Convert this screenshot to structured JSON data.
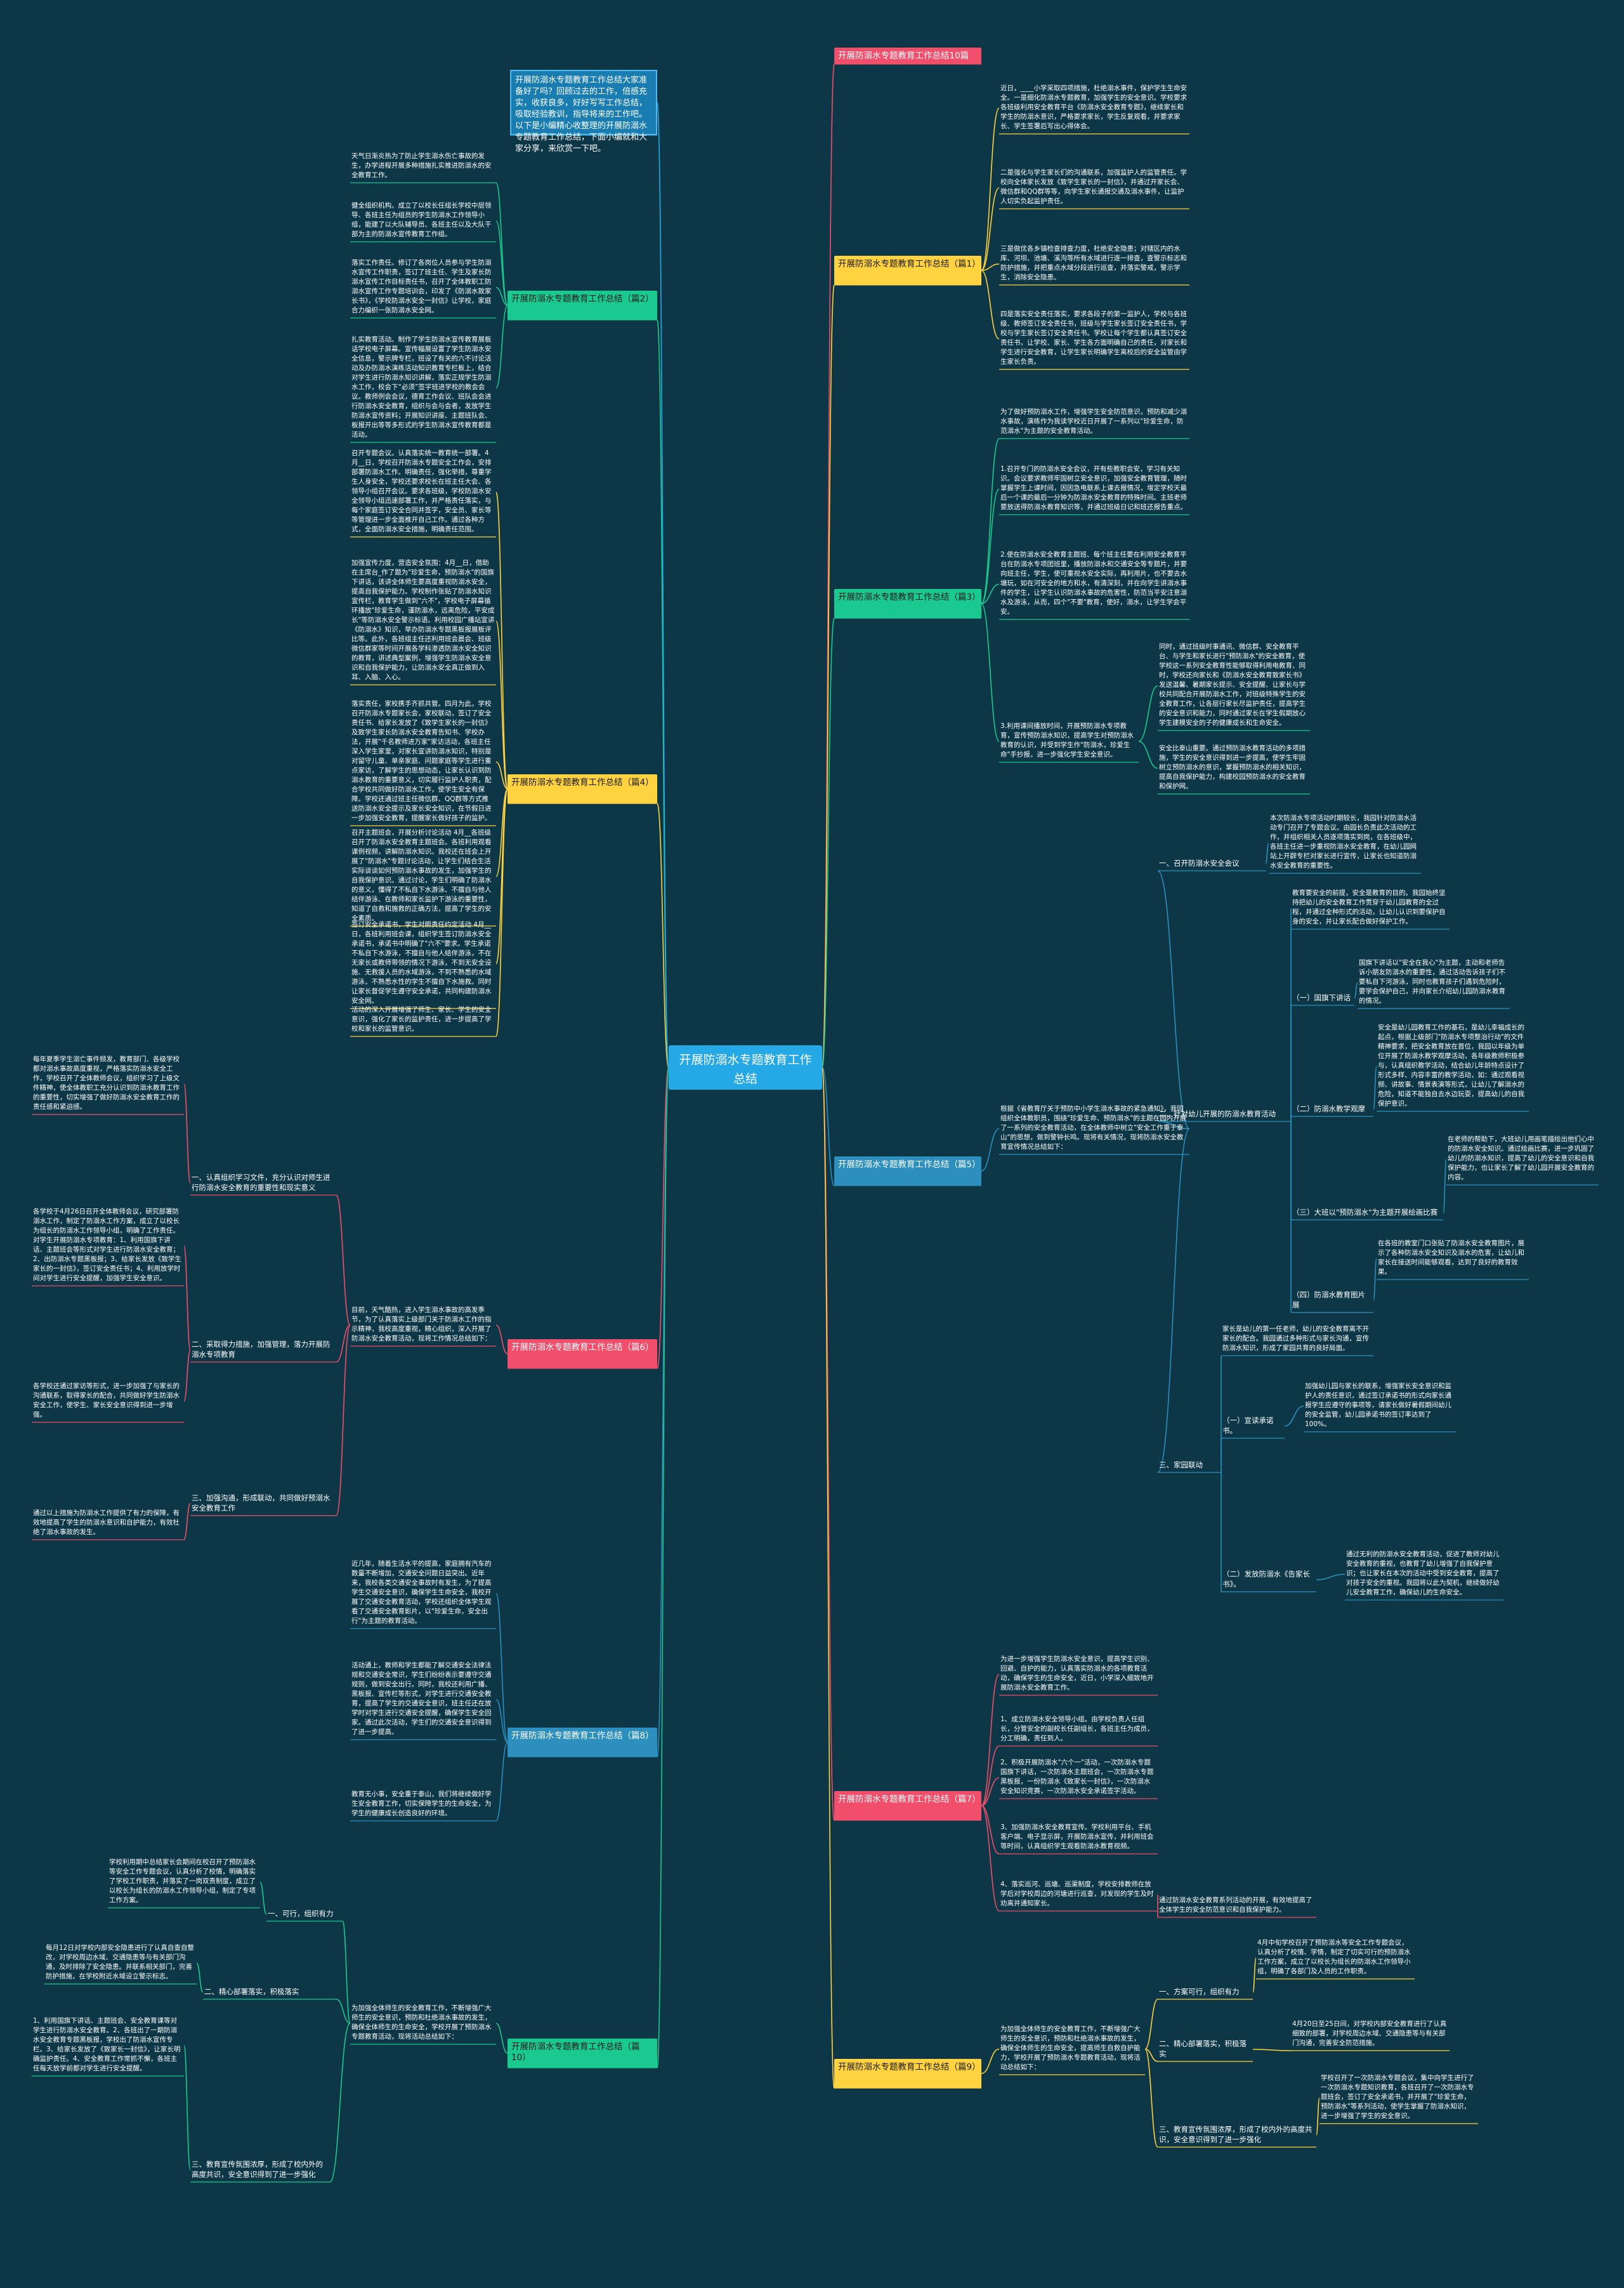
{
  "root": "开展防溺水专题教育工作总结",
  "intro": "开展防溺水专题教育工作总结大家准备好了吗？回顾过去的工作，倍感充实，收获良多，好好写写工作总结，吸取经验教训，指导将来的工作吧。以下是小编精心收整理的开展防溺水专题教育工作总结，下面小编就和大家分享，来欣赏一下吧。",
  "branches": {
    "b10": "开展防溺水专题教育工作总结10篇",
    "b1": "开展防溺水专题教育工作总结（篇1）",
    "b2": "开展防溺水专题教育工作总结（篇2）",
    "b3": "开展防溺水专题教育工作总结（篇3）",
    "b4": "开展防溺水专题教育工作总结（篇4）",
    "b5": "开展防溺水专题教育工作总结（篇5）",
    "b6": "开展防溺水专题教育工作总结（篇6）",
    "b7": "开展防溺水专题教育工作总结（篇7）",
    "b8": "开展防溺水专题教育工作总结（篇8）",
    "b9": "开展防溺水专题教育工作总结（篇9）",
    "b0": "开展防溺水专题教育工作总结（篇10）"
  },
  "p1": [
    "近日，____小学采取四项措施，杜绝溺水事件，保护学生生命安全。一是细化防溺水专题教育，加强学生的安全意识。学校要求各班级利用安全教育平台《防溺水安全教育专题》，继续家长和学生的防溺水意识，严格要求家长，学生反复观看，并要求家长、学生签署后写出心得体会。",
    "二是强化与学生家长们的沟通联系，加强监护人的监管责任。学校向全体家长发放《致学生家长的一封信》，并通过开家长会、微信群和QQ群等等，向学生家长通报交通及溺水事件，让监护人切实负起监护责任。",
    "三是做优各乡镇检查排查力度，杜绝安全隐患；对辖区内的水库、河坝、池塘、溪沟等所有水域进行逐一排查，查警示标志和防护措施，并把重点水域分段进行巡查，并落实警戒，警示学生，消除安全隐患。",
    "四是落实安全责任落实，要求各段子的第一监护人，学校与各班级、教师签订安全责任书，班级与学生家长签订安全责任书，学校与学生家长签订安全责任书。学校让每个学生都认真签订安全责任书，让学校、家长、学生各方面明确自己的责任，对家长和学生进行安全教育，让学生家长明确学生离校后的安全监管由学生家长负责。"
  ],
  "p2": [
    "天气日渐炎热为了防止学生溺水伤亡事故的发生，办学进程开展多种措施扎实推进防溺水的安全教育工作。",
    "健全组织机构。成立了以校长任组长学校中层领导、各班主任为组员的学生防溺水工作领导小组，能建了以大队辅导员、各班主任以及大队干部为主的防溺水宣传教育工作组。",
    "落实工作责任。修订了各岗位人员参与学生防溺水宣传工作职责，签订了班主任、学生及家长防溺水宣传工作目标责任书，召开了全体教职工防溺水宣传工作专题培训会，印发了《防溺水致家长书》，《学校防溺水安全一封信》让学校，家庭合力编织一张防溺水安全网。",
    "扎实教育活动。制作了学生防溺水宣传教育展板话学校电子屏幕。宣传幅展设置了学生防溺水安全信息，警示牌专栏，班设了有关的六不讨论活动及办防溺水演练活动知识教育专栏板上，结合对学生进行防溺水知识讲解，落实正规学生防溺水工作，校会下“必须”签字班进学校的教会会议。教师例会会议，德育工作会议、班队会会进行防溺水安全教育，组织与会与会者，发放学生防溺水宣传资料；开展知识讲座、主题班队会、板报开出等等多形式的学生防溺水宣传教育都是活动。"
  ],
  "p3": [
    "为了做好预防溺水工作，增强学生安全防范意识，预防和减少溺水事故，演练作为我读学校近日开展了一系列以\"珍爱生命，防范溺水\"为主题的安全教育活动。",
    "1.召开专门的防溺水安全会议，开有些教职会安，学习有关知识。会议要求教师牢固树立安全意识，加强安全教育管理，随时掌握学生上课时间，因因急电联系上课去报情况，增定学校天最后一个课的最后一分钟为防溺水安全教育的特殊时间。主班老师要放送得防溺水教育知识等，并通过班级日记和班还报告重点。",
    "2.使在防溺水安全教育主题班、每个班主任要在利用安全教育平台在防溺水专项团班里，播放防溺水和交通安全等专题片，并要向班主任，学生，使可重视水安全实际，再利用片，也不要去水塘玩，如在河安全的地方和水，有清深刻，并在向学生讲溺水事件的学生，让学生认识防溺水事故的危害性，防范当平安注意溺水及游泳，从而，四个\"不要\"教育，使好，溺水，让学生学会平安。",
    "3.利用课间播放时间，开展预防溺水专项教育，宣传预防溺水知识，提高学生对预防溺水教育的认识，并受到学生作\"防溺水，珍爱生命\"手抄报，进一步强化学生安全意识。",
    "同时，通过班级时事通讯、微信群、安全教育平台、与学生和家长进行\"预防溺水\"的安全教育，使学校这一系列安全教育性能够取得利用电教育、同时，学校还向家长和《防溺水安全教育致家长书》发送温馨、暑期家长提示、安全提醒、让家长与学校共同配合开展防溺水工作，对班级特殊学生的安全教育工作，让各层行家长尽监护责任，提高学生的安全意识和能力，同时通过家长在学生假期放心学生建模安全的子的健康成长和生命安全。",
    "安全比泰山重要。通过预防溺水教育活动的多项措施，学生的安全意识得到进一步提高，使学生牢固树立预防溺水的意识，掌握预防溺水的相关知识，提高自我保护能力，构建校园预防溺水的安全教育和保护网。"
  ],
  "p4": [
    "召开专题会议。认真落实统一教育统一部署。4月__日，学校召开防溺水专题安全工作会，安排部署防溺水工作。明确责任，强化举措，尊重学生人身安全，学校还要求校长在班主任大会、各领导小组召开会议。要求各班级，学校防溺水安全领导小组迅速部署工作，并严格责任落实，与每个家庭签订安全合同并签字，安全员、家长等等管理进一步全面推开自己工作。通过各种方式，全面防溺水安全措施，明确责任范围。",
    "加强宣传力度，营造安全氛围：4月__日，借助在主席台_作了题为\"珍爱生命，预防溺水\"的国旗下讲话，该讲全体师生要高度重视防溺水安全，提高自我保护能力。学校制作张贴了防溺水知识宣传栏，教育学生做到\"六不\"，学校电子屏幕循环播放\"珍爱生命，谨防溺水，远离危险，平安成长\"等防溺水安全警示标语。利用校园广播站宣讲《防溺水》知识，举办防溺水专题黑板报展板评比等。此外，各班组主任还利用班会晨会、班级微信群家等时间开展各学科渗透防溺水安全知识的教育，讲述典型案例，增强学生防溺水安全意识和自我保护能力，让防溺水安全真正做到入耳、入脑、入心。",
    "落实责任，家校携手齐抓共管。四月为此，学校召开防溺水专题家长会，家校联动，签订了安全责任书、给家长发放了《致学生家长的一封信》及致学生家长防溺水安全教育告知书、学校办法，开展\"千名教师进万家\"家访活动，各班主任深入学生家里，对家长宣讲防溺水知识，特别是对留守儿童、单亲家庭、问题家庭等学生进行重点家访，了解学生的思想动态，让家长认识到防溺水教育的重要意义，切实履行监护人职责，配合学校共同做好防溺水工作，使学生安全有保障。学校还通过班主任微信群、QQ群等方式推送防溺水安全提示及家长安全知识，在节假日进一步加强安全教育，提醒家长做好孩子的监护。",
    "召开主题班会，开展分析讨论活动 4月__各班级召开了防溺水安全教育主题班会。各班利用观看课例视频，讲解防溺水知识。我校还在班会上开展了\"防溺水\"专题讨论活动，让学生们结合生活实际谈谈如何预防溺水事故的发生，加强学生的自我保护意识。通过讨论，学生们明确了防溺水的意义，懂得了不私自下水游泳、不擅自与他人结伴游泳、在教师和家长监护下游泳的重要性，知道了自救和施救的正确方法，提高了学生的安全素质。",
    "签订安全承诺书，学生对照责任约定活动 4月__日，各班利用班会课，组织学生签订防溺水安全承诺书，承诺书中明确了\"六不\"要求。学生承诺不私自下水游泳，不擅自与他人结伴游泳，不在无家长或教师带领的情况下游泳，不到无安全设施、无救援人员的水域游泳，不到不熟悉的水域游泳，不熟悉水性的学生不擅自下水施救。同时让家长督促学生遵守安全承诺，共同构建防溺水安全网。",
    "活动的深入开展增强了师生、家长、学生的安全意识，强化了家长的监护责任，进一步提高了学校和家长的监管意识。"
  ],
  "p5": {
    "intro": "根据《省教育厅关于预防中小学生溺水事故的紧急通知》，我园组织全体教职员，围绕\"珍爱生命、预防溺水\"的主题在园内开展了一系列的安全教育活动，在全体教师中树立\"安全工作重于泰山\"的思想，做到警钟长鸣。现将有关情况，现将防溺水安全教育宣传情况总结如下：",
    "s1": "一、召开防溺水安全会议",
    "s1t": "本次防溺水专项活动时期较长，我园针对防溺水活动专门召开了专题会议。由园长负责此次活动的工作，并组织相关人员逐项落实到岗，在各班级中，各班主任进一步重视防溺水安全教育，在幼儿园网站上开辟专栏对家长进行宣传，让家长也知道防溺水安全教育的重要性。",
    "s2": "二、针对幼儿开展的防溺水教育活动",
    "s2t": "教育要安全的前提，安全是教育的目的。我园始终坚持把幼儿的安全教育工作贯穿于幼儿园教育的全过程，并通过全种形式的活动，让幼儿认识到要保护自身的安全，并让家长配合做好保护工作。",
    "s2a": "（一）国旗下讲话",
    "s2at": "国旗下讲话以\"安全在我心\"为主题，主动和老师告诉小朋友防溺水的重要性，通过活动告诉孩子们不要私自下河游泳，同时也教育孩子们遇到危险时，要学会保护自己，并向家长介绍幼儿园防溺水教育的情况。",
    "s2b": "（二）防溺水教学观摩",
    "s2bt": "安全是幼儿园教育工作的基石，是幼儿幸福成长的起点，根据上级部门\"防溺水专项整治行动\"的文件精神要求，把安全教育放在首位，我园以年级为单位开展了防溺水教学观摩活动，各年级教师积极参与，认真组织教学活动，结合幼儿年龄特点设计了形式多样、内容丰富的教学活动，如：通过观看视频、讲故事、情景表演等形式，让幼儿了解溺水的危险，知道不能独自去水边玩耍，提高幼儿的自我保护意识。",
    "s2c": "（三）大班以\"预防溺水\"为主题开展绘画比赛",
    "s2ct": "在老师的帮助下，大班幼儿用画笔描绘出他们心中的防溺水安全知识。通过绘画比赛，进一步巩固了幼儿的防溺水知识，提高了幼儿的安全意识和自我保护能力，也让家长了解了幼儿园开展安全教育的内容。",
    "s2d": "（四）防溺水教育图片展",
    "s2dt": "在各班的教室门口张贴了防溺水安全教育图片，展示了各种防溺水安全知识及溺水的危害，让幼儿和家长在接送时间能够观看，达到了良好的教育效果。",
    "s3": "三、家园联动",
    "s3t": "家长是幼儿的第一任老师，幼儿的安全教育离不开家长的配合。我园通过多种形式与家长沟通，宣传防溺水知识，形成了家园共育的良好局面。",
    "s3a": "（一）宣读承诺书。",
    "s3at": "加强幼儿园与家长的联系，增强家长安全意识和监护人的责任意识，通过签订承诺书的形式向家长通报学生应遵守的事项等，请家长做好暑假期间幼儿的安全监管，幼儿园承诺书的签订率达到了100%。",
    "s3b": "（二）发放防溺水《告家长书》。",
    "s3bt": "通过无利的防溺水安全教育活动，促进了教师对幼儿安全教育的重视，也教育了幼儿增强了自我保护意识；也让家长在本次的活动中受到安全教育，提高了对孩子安全的重视。我园将以此为契机，继续做好幼儿安全教育工作，确保幼儿的生命安全。"
  },
  "p6": {
    "intro": "目前，天气酷热，进入学生溺水事故的高发季节，为了认真落实上级部门关于防溺水工作的指示精神，我校高度重视，精心组织，深入开展了防溺水安全教育活动，现将工作情况总结如下：",
    "i1": "一、认真组织学习文件，充分认识对师生进行防溺水安全教育的重要性和现实意义",
    "i1t": "每年夏季学生溺亡事件频发，教育部门、各级学校都对溺水事故高度重视，严格落实防溺水安全工作，学校召开了全体教师会议，组织学习了上级文件精神，使全体教职工充分认识到防溺水教育工作的重要性，切实增强了做好防溺水安全教育工作的责任感和紧迫感。",
    "i2": "二、采取得力措施，加强管理，落力开展防溺水专项教育",
    "i2t": "各学校于4月26日召开全体教师会议，研究部署防溺水工作，制定了防溺水工作方案，成立了以校长为组长的防溺水工作领导小组，明确了工作责任。对学生开展防溺水专项教育：1、利用国旗下讲话、主题班会等形式对学生进行防溺水安全教育；2、出防溺水专题黑板报；3、给家长发放《致学生家长的一封信》，签订安全责任书；4、利用放学时间对学生进行安全提醒，加强学生安全意识。",
    "i2t2": "各学校还通过家访等形式，进一步加强了与家长的沟通联系，取得家长的配合，共同做好学生防溺水安全工作，使学生、家长安全意识得到进一步增强。",
    "i3": "三、加强沟通，形成联动，共同做好预溺水安全教育工作",
    "i3t": "通过以上措施为防溺水工作提供了有力的保障，有效地提高了学生的防溺水意识和自护能力，有效杜绝了溺水事故的发生。"
  },
  "p7": [
    "为进一步增强学生防溺水安全意识，提高学生识别、回避、自护的能力，认真落实防溺水的各项教育活动，确保学生的生命安全，近日，小学深入细致地开展防溺水安全教育工作。",
    "1、成立防溺水安全领导小组。由学校负责人任组长，分管安全的副校长任副组长，各班主任为成员，分工明确，责任到人。",
    "2、积极开展防溺水\"六个一\"活动，一次防溺水专题国旗下讲话，一次防溺水主题班会，一次防溺水专题黑板报，一份防溺水《致家长一封信》，一次防溺水安全知识竞赛，一次防溺水安全承诺签字活动。",
    "3、加强防溺水安全教育宣传。学校利用平台、手机客户端、电子显示屏，开展防溺水宣传，并利用班会等时间，认真组织学生观看防溺水教育视频。",
    "4、落实巡河、巡塘、巡渠制度，学校安排教师在放学后对学校周边的河塘进行巡查，对发现的学生及时劝离并通知家长。",
    "通过防溺水安全教育系列活动的开展，有效地提高了全体学生的安全防范意识和自我保护能力。"
  ],
  "p8": [
    "近几年，随着生活水平的提高，家庭拥有汽车的数量不断增加，交通安全问题日益突出。近年来，我校各类交通安全事故时有发生，为了提高学生交通安全意识，确保学生生命安全，我校开展了交通安全教育活动，学校还组织全体学生观看了交通安全教育影片，以\"珍爱生命，安全出行\"为主题的教育活动。",
    "活动通上，教师和学生都能了解交通安全法律法规和交通安全常识，学生们纷纷表示要遵守交通规则，做到安全出行。同时，我校还利用广播、黑板报、宣传栏等形式，对学生进行交通安全教育，提高了学生的交通安全意识，班主任还在放学时对学生进行交通安全提醒，确保学生安全回家。通过此次活动，学生们的交通安全意识得到了进一步提高。",
    "教育无小事，安全重于泰山，我们将继续做好学生安全教育工作，切实保障学生的生命安全，为学生的健康成长创造良好的环境。"
  ],
  "p9": {
    "intro": "为加强全体师生的安全教育工作，不断增强广大师生的安全意识，预防和杜绝溺水事故的发生，确保全体师生的生命安全，提高师生自救自护能力，学校开展了预防溺水专题教育活动，现将活动总结如下：",
    "i1": "一、方案可行，组织有力",
    "i1t": "4月中旬学校召开了预防溺水等安全工作专题会议，认真分析了校情、学情，制定了切实可行的预防溺水工作方案，成立了以校长为组长的防溺水工作领导小组，明确了各部门及人员的工作职责。",
    "i2": "二、精心部署落实，积极落实",
    "i2t": "4月20日至25日间，对学校内部安全教育进行了认真细致的部署，对学校周边水域、交通隐患等与有关部门沟通，完善安全防范措施。",
    "i3": "三、教育宣传氛围浓厚，形成了校内外的高度共识，安全意识得到了进一步强化",
    "i3t": "学校召开了一次防溺水专题会议，集中向学生进行了一次防溺水专题知识教育，各班召开了一次防溺水专题班会，签订了安全承诺书，并开展了\"珍爱生命，预防溺水\"等系列活动，使学生掌握了防溺水知识，进一步增强了学生的安全意识。"
  },
  "p0": {
    "intro": "为加强全体师生的安全教育工作，不断增强广大师生的安全意识，预防和杜绝溺水事故的发生，确保全体师生的生命安全，学校开展了预防溺水专题教育活动，现将活动总结如下：",
    "i1": "一、可行，组织有力",
    "i1t": "学校利用期中总结家长会期间在校召开了预防溺水等安全工作专题会议，认真分析了校情，明确落实了学校工作职责，并落实了一岗双责制度，成立了以校长为组长的防溺水工作领导小组，制定了专项工作方案。",
    "i2": "二、精心部署落实，积极落实",
    "i2t": "每月12日对学校内部安全隐患进行了认真自查自整改，对学校周边水域、交通隐患等与有关部门沟通，及时排除了安全隐患。并联系相关部门，完善防护措施，在学校附近水域设立警示标志。",
    "i3": "三、教育宣传氛围浓厚，形成了校内外的高度共识，安全意识得到了进一步强化",
    "i3t": "1、利用国旗下讲话、主题班会、安全教育课等对学生进行防溺水安全教育。2、各班出了一期防溺水安全教育专题黑板报，学校出了防溺水宣传专栏。3、给家长发放了《致家长一封信》，让家长明确监护责任。4、安全教育工作常抓不懈，各班主任每天放学前都对学生进行安全提醒。"
  }
}
